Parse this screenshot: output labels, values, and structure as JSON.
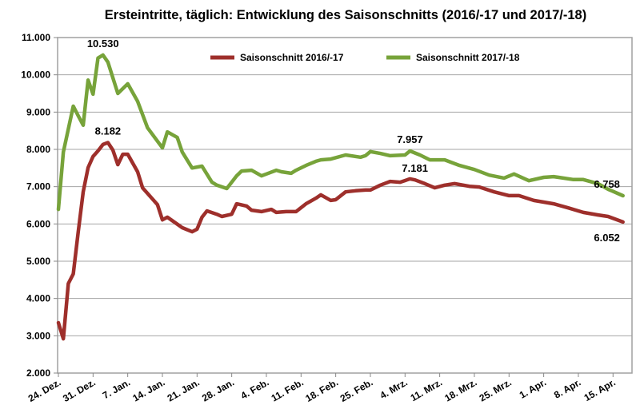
{
  "chart_data": {
    "type": "line",
    "title": "Ersteintritte, täglich: Entwicklung des Saisonschnitts (2016/-17 und 2017/-18)",
    "xlabel": "",
    "ylabel": "",
    "ylim": [
      2000,
      11000
    ],
    "yticks": [
      "2.000",
      "3.000",
      "4.000",
      "5.000",
      "6.000",
      "7.000",
      "8.000",
      "9.000",
      "10.000",
      "11.000"
    ],
    "xticks": [
      "24. Dez.",
      "31. Dez.",
      "7. Jan.",
      "14. Jan.",
      "21. Jan.",
      "28. Jan.",
      "4. Feb.",
      "11. Feb.",
      "18. Feb.",
      "25. Feb.",
      "4. Mrz.",
      "11. Mrz.",
      "18. Mrz.",
      "25. Mrz.",
      "1. Apr.",
      "8. Apr.",
      "15. Apr."
    ],
    "grid": true,
    "legend_position": "top",
    "series": [
      {
        "name": "Saisonschnitt 2016/-17",
        "color": "#9E2F2B",
        "x": [
          "24.12",
          "25.12",
          "26.12",
          "27.12",
          "28.12",
          "29.12",
          "30.12",
          "31.12",
          "1.1",
          "2.1",
          "3.1",
          "4.1",
          "5.1",
          "6.1",
          "7.1",
          "9.1",
          "10.1",
          "13.1",
          "14.1",
          "15.1",
          "18.1",
          "20.1",
          "21.1",
          "22.1",
          "23.1",
          "25.1",
          "26.1",
          "28.1",
          "29.1",
          "31.1",
          "1.2",
          "3.2",
          "5.2",
          "6.2",
          "8.2",
          "10.2",
          "12.2",
          "14.2",
          "15.2",
          "17.2",
          "18.2",
          "20.2",
          "22.2",
          "24.2",
          "25.2",
          "27.2",
          "1.3",
          "3.3",
          "5.3",
          "6.3",
          "8.3",
          "10.3",
          "12.3",
          "14.3",
          "17.3",
          "19.3",
          "22.3",
          "25.3",
          "27.3",
          "30.3",
          "3.4",
          "6.4",
          "9.4",
          "12.4",
          "14.4",
          "17.4"
        ],
        "values": [
          3350,
          2920,
          4400,
          4660,
          5790,
          6860,
          7510,
          7810,
          7960,
          8130,
          8182,
          7980,
          7590,
          7870,
          7870,
          7400,
          6970,
          6520,
          6110,
          6180,
          5900,
          5790,
          5860,
          6180,
          6350,
          6260,
          6200,
          6260,
          6540,
          6480,
          6370,
          6330,
          6390,
          6310,
          6330,
          6330,
          6540,
          6690,
          6780,
          6630,
          6650,
          6860,
          6890,
          6910,
          6910,
          7040,
          7140,
          7120,
          7210,
          7181,
          7080,
          6970,
          7040,
          7080,
          7010,
          6990,
          6860,
          6760,
          6760,
          6630,
          6540,
          6430,
          6310,
          6240,
          6200,
          6052
        ]
      },
      {
        "name": "Saisonschnitt 2017/-18",
        "color": "#77A33A",
        "x": [
          "24.12",
          "25.12",
          "27.12",
          "28.12",
          "29.12",
          "30.12",
          "31.12",
          "1.1",
          "2.1",
          "3.1",
          "5.1",
          "7.1",
          "9.1",
          "11.1",
          "14.1",
          "15.1",
          "17.1",
          "18.1",
          "20.1",
          "22.1",
          "24.1",
          "25.1",
          "27.1",
          "29.1",
          "30.1",
          "1.2",
          "3.2",
          "4.2",
          "6.2",
          "7.2",
          "9.2",
          "10.2",
          "12.2",
          "14.2",
          "15.2",
          "17.2",
          "20.2",
          "23.2",
          "24.2",
          "25.2",
          "27.2",
          "1.3",
          "4.3",
          "5.3",
          "7.3",
          "9.3",
          "12.3",
          "15.3",
          "18.3",
          "21.3",
          "24.3",
          "26.3",
          "29.3",
          "1.4",
          "3.4",
          "4.4",
          "7.4",
          "9.4",
          "12.4",
          "14.4",
          "17.4"
        ],
        "values": [
          6390,
          7930,
          9160,
          8900,
          8650,
          9860,
          9480,
          10450,
          10530,
          10340,
          9500,
          9760,
          9290,
          8580,
          8040,
          8470,
          8320,
          7930,
          7500,
          7550,
          7120,
          7040,
          6950,
          7290,
          7420,
          7440,
          7290,
          7340,
          7440,
          7400,
          7360,
          7440,
          7570,
          7680,
          7720,
          7740,
          7850,
          7790,
          7830,
          7940,
          7890,
          7830,
          7850,
          7957,
          7850,
          7720,
          7720,
          7570,
          7460,
          7310,
          7230,
          7340,
          7160,
          7250,
          7270,
          7250,
          7190,
          7190,
          7080,
          6930,
          6758
        ]
      }
    ],
    "annotations": [
      {
        "text": "10.530",
        "series": 1,
        "x": "2.1"
      },
      {
        "text": "8.182",
        "series": 0,
        "x": "3.1"
      },
      {
        "text": "7.957",
        "series": 1,
        "x": "5.3"
      },
      {
        "text": "7.181",
        "series": 0,
        "x": "6.3"
      },
      {
        "text": "6.758",
        "series": 1,
        "x": "17.4"
      },
      {
        "text": "6.052",
        "series": 0,
        "x": "17.4"
      }
    ]
  }
}
